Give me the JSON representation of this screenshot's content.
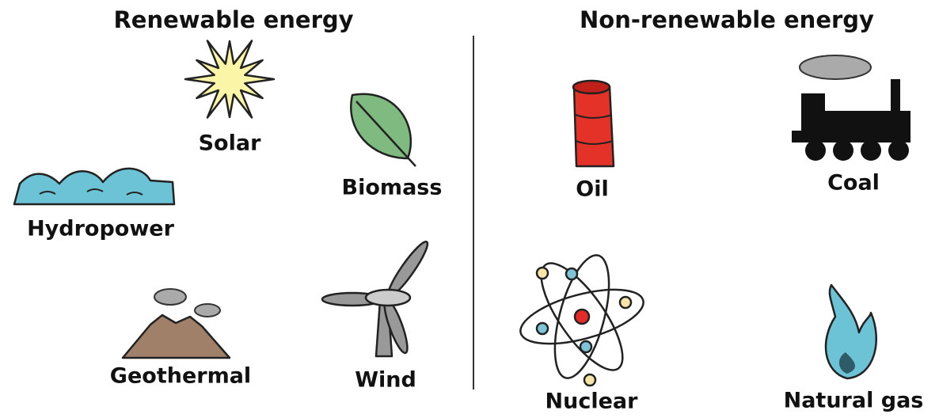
{
  "sections": [
    {
      "title": "Renewable energy",
      "items": [
        {
          "label": "Solar"
        },
        {
          "label": "Biomass"
        },
        {
          "label": "Hydropower"
        },
        {
          "label": "Geothermal"
        },
        {
          "label": "Wind"
        }
      ]
    },
    {
      "title": "Non-renewable energy",
      "items": [
        {
          "label": "Oil"
        },
        {
          "label": "Coal"
        },
        {
          "label": "Nuclear"
        },
        {
          "label": "Natural gas"
        }
      ]
    }
  ]
}
